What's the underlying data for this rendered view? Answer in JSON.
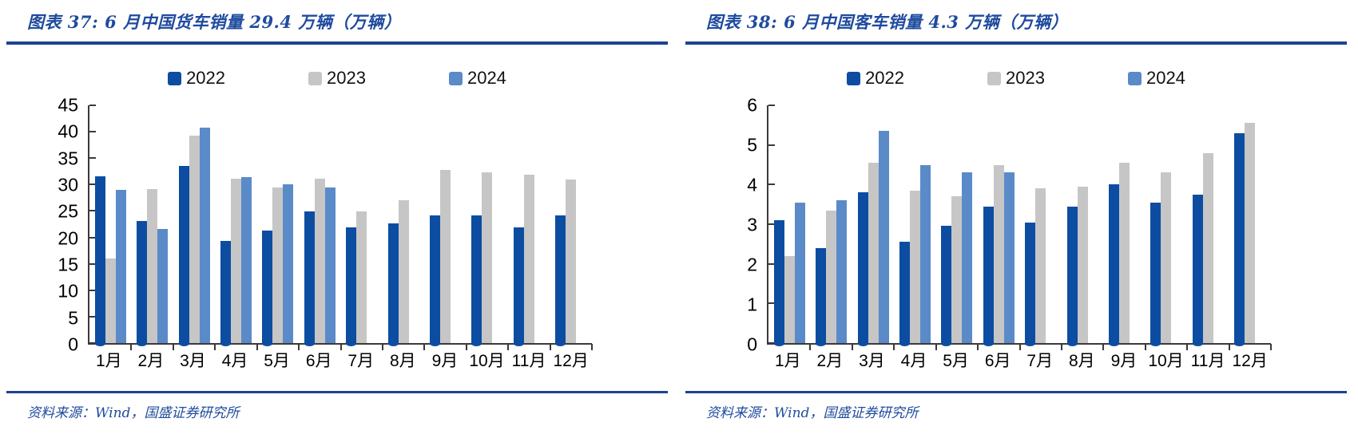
{
  "style": {
    "accent_navy": "#1B4390",
    "title_color": "#1F4B9E",
    "axis_color": "#3A3A3A"
  },
  "source_label": "资料来源：Wind，国盛证券研究所",
  "figures": [
    {
      "title": "图表 37:  6 月中国货车销量 29.4 万辆（万辆）",
      "source": "资料来源：Wind，国盛证券研究所",
      "chart_data": {
        "type": "bar",
        "title": "6月中国货车销量 29.4 万辆（万辆）",
        "categories": [
          "1月",
          "2月",
          "3月",
          "4月",
          "5月",
          "6月",
          "7月",
          "8月",
          "9月",
          "10月",
          "11月",
          "12月"
        ],
        "series": [
          {
            "name": "2022",
            "color": "#0C4DA2",
            "values": [
              31.6,
              23.1,
              33.5,
              19.4,
              21.3,
              24.9,
              21.9,
              22.7,
              24.2,
              24.2,
              21.9,
              24.1
            ]
          },
          {
            "name": "2023",
            "color": "#C6C6C6",
            "values": [
              16.0,
              29.1,
              39.2,
              31.1,
              29.4,
              31.1,
              24.9,
              27.1,
              32.7,
              32.3,
              31.9,
              31.0
            ]
          },
          {
            "name": "2024",
            "color": "#5B8AC9",
            "values": [
              29.0,
              21.6,
              40.7,
              31.4,
              30.0,
              29.4,
              null,
              null,
              null,
              null,
              null,
              null
            ]
          }
        ],
        "xlabel": "",
        "ylabel": "",
        "ylim": [
          0,
          45
        ],
        "ytick": 5,
        "grid": false,
        "legend_position": "top"
      }
    },
    {
      "title": "图表 38:  6 月中国客车销量 4.3 万辆（万辆）",
      "source": "资料来源：Wind，国盛证券研究所",
      "chart_data": {
        "type": "bar",
        "title": "6月中国客车销量 4.3 万辆（万辆）",
        "categories": [
          "1月",
          "2月",
          "3月",
          "4月",
          "5月",
          "6月",
          "7月",
          "8月",
          "9月",
          "10月",
          "11月",
          "12月"
        ],
        "series": [
          {
            "name": "2022",
            "color": "#0C4DA2",
            "values": [
              3.1,
              2.4,
              3.8,
              2.55,
              2.95,
              3.45,
              3.05,
              3.45,
              4.0,
              3.55,
              3.75,
              5.3
            ]
          },
          {
            "name": "2023",
            "color": "#C6C6C6",
            "values": [
              2.2,
              3.35,
              4.55,
              3.85,
              3.7,
              4.5,
              3.9,
              3.95,
              4.55,
              4.3,
              4.8,
              5.55
            ]
          },
          {
            "name": "2024",
            "color": "#5B8AC9",
            "values": [
              3.55,
              3.6,
              5.35,
              4.5,
              4.3,
              4.3,
              null,
              null,
              null,
              null,
              null,
              null
            ]
          }
        ],
        "xlabel": "",
        "ylabel": "",
        "ylim": [
          0,
          6
        ],
        "ytick": 1,
        "grid": false,
        "legend_position": "top"
      }
    }
  ]
}
